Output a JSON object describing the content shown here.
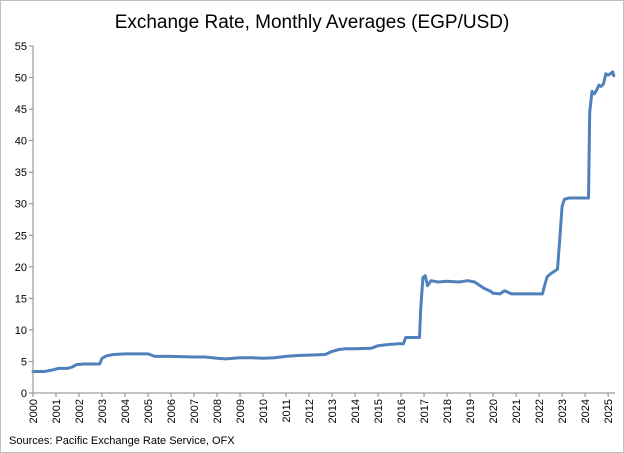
{
  "chart_data": {
    "type": "line",
    "title": "Exchange Rate, Monthly Averages (EGP/USD)",
    "source": "Sources: Pacific Exchange Rate Service, OFX",
    "xlabel": "",
    "ylabel": "",
    "xlim": [
      2000,
      2025.3
    ],
    "ylim": [
      0,
      55
    ],
    "y_ticks": [
      0,
      5,
      10,
      15,
      20,
      25,
      30,
      35,
      40,
      45,
      50,
      55
    ],
    "x_ticks": [
      2000,
      2001,
      2002,
      2003,
      2004,
      2005,
      2006,
      2007,
      2008,
      2009,
      2010,
      2011,
      2012,
      2013,
      2014,
      2015,
      2016,
      2017,
      2018,
      2019,
      2020,
      2021,
      2022,
      2023,
      2024,
      2025
    ],
    "grid": false,
    "legend": "none",
    "line_color": "#4f81bd",
    "series": [
      {
        "x": [
          2000,
          2000.5,
          2000.9,
          2001.1,
          2001.5,
          2001.7,
          2001.9,
          2002.2,
          2002.6,
          2002.9,
          2003.0,
          2003.2,
          2003.5,
          2004.0,
          2004.6,
          2005.0,
          2005.3,
          2006.0,
          2007.0,
          2007.5,
          2008.0,
          2008.4,
          2008.7,
          2009.0,
          2009.5,
          2010.0,
          2010.5,
          2011.0,
          2011.5,
          2012.0,
          2012.7,
          2013.0,
          2013.3,
          2013.6,
          2014.0,
          2014.7,
          2015.0,
          2015.5,
          2015.9,
          2016.1,
          2016.2,
          2016.8,
          2016.85,
          2016.95,
          2017.05,
          2017.15,
          2017.3,
          2017.6,
          2018.0,
          2018.5,
          2018.9,
          2019.2,
          2019.6,
          2019.9,
          2020.0,
          2020.3,
          2020.5,
          2020.8,
          2021.0,
          2021.5,
          2022.0,
          2022.15,
          2022.2,
          2022.35,
          2022.5,
          2022.8,
          2022.9,
          2023.0,
          2023.1,
          2023.3,
          2023.6,
          2024.0,
          2024.15,
          2024.2,
          2024.3,
          2024.4,
          2024.5,
          2024.6,
          2024.7,
          2024.8,
          2024.9,
          2025.0,
          2025.1,
          2025.2,
          2025.25
        ],
        "y": [
          3.4,
          3.4,
          3.7,
          3.9,
          3.9,
          4.1,
          4.5,
          4.6,
          4.6,
          4.6,
          5.5,
          5.9,
          6.1,
          6.2,
          6.2,
          6.2,
          5.8,
          5.8,
          5.7,
          5.7,
          5.5,
          5.4,
          5.5,
          5.6,
          5.6,
          5.5,
          5.6,
          5.8,
          5.95,
          6.0,
          6.1,
          6.6,
          6.9,
          7.0,
          7.0,
          7.1,
          7.5,
          7.7,
          7.8,
          7.8,
          8.8,
          8.8,
          13.0,
          18.3,
          18.6,
          17.0,
          17.8,
          17.6,
          17.7,
          17.6,
          17.8,
          17.6,
          16.6,
          16.1,
          15.8,
          15.7,
          16.2,
          15.7,
          15.7,
          15.7,
          15.7,
          15.7,
          16.5,
          18.4,
          18.9,
          19.6,
          24.5,
          29.6,
          30.7,
          30.9,
          30.9,
          30.9,
          30.9,
          44.5,
          47.8,
          47.4,
          48.0,
          48.8,
          48.6,
          49.0,
          50.6,
          50.4,
          50.6,
          50.9,
          50.3
        ]
      }
    ]
  }
}
